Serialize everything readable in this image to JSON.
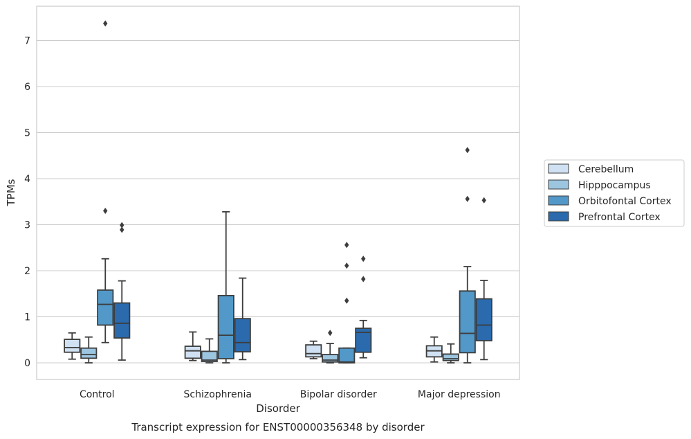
{
  "chart_data": {
    "type": "box",
    "caption": "Transcript expression for ENST00000356348 by disorder",
    "xlabel": "Disorder",
    "ylabel": "TPMs",
    "ylim": [
      -0.35,
      7.75
    ],
    "yticks": [
      0,
      1,
      2,
      3,
      4,
      5,
      6,
      7
    ],
    "grid": true,
    "legend_position": "right",
    "categories": [
      "Control",
      "Schizophrenia",
      "Bipolar disorder",
      "Major depression"
    ],
    "series": [
      {
        "name": "Cerebellum",
        "color": "#cfe1f2",
        "boxes": [
          {
            "whisker_low": 0.08,
            "q1": 0.23,
            "median": 0.33,
            "q3": 0.51,
            "whisker_high": 0.65,
            "outliers": []
          },
          {
            "whisker_low": 0.05,
            "q1": 0.1,
            "median": 0.26,
            "q3": 0.36,
            "whisker_high": 0.67,
            "outliers": []
          },
          {
            "whisker_low": 0.09,
            "q1": 0.13,
            "median": 0.2,
            "q3": 0.39,
            "whisker_high": 0.47,
            "outliers": []
          },
          {
            "whisker_low": 0.02,
            "q1": 0.13,
            "median": 0.26,
            "q3": 0.37,
            "whisker_high": 0.56,
            "outliers": []
          }
        ]
      },
      {
        "name": "Hipppocampus",
        "color": "#9cc5e0",
        "boxes": [
          {
            "whisker_low": 0.0,
            "q1": 0.1,
            "median": 0.18,
            "q3": 0.32,
            "whisker_high": 0.56,
            "outliers": []
          },
          {
            "whisker_low": 0.0,
            "q1": 0.03,
            "median": 0.06,
            "q3": 0.25,
            "whisker_high": 0.52,
            "outliers": []
          },
          {
            "whisker_low": 0.0,
            "q1": 0.02,
            "median": 0.06,
            "q3": 0.18,
            "whisker_high": 0.42,
            "outliers": [
              0.65
            ]
          },
          {
            "whisker_low": 0.0,
            "q1": 0.05,
            "median": 0.09,
            "q3": 0.19,
            "whisker_high": 0.41,
            "outliers": []
          }
        ]
      },
      {
        "name": "Orbitofontal Cortex",
        "color": "#5298c8",
        "boxes": [
          {
            "whisker_low": 0.44,
            "q1": 0.82,
            "median": 1.27,
            "q3": 1.58,
            "whisker_high": 2.26,
            "outliers": [
              3.3,
              7.37
            ]
          },
          {
            "whisker_low": 0.0,
            "q1": 0.09,
            "median": 0.6,
            "q3": 1.46,
            "whisker_high": 3.28,
            "outliers": []
          },
          {
            "whisker_low": 0.0,
            "q1": 0.0,
            "median": 0.02,
            "q3": 0.32,
            "whisker_high": 0.32,
            "outliers": [
              1.35,
              2.11,
              2.56
            ]
          },
          {
            "whisker_low": 0.0,
            "q1": 0.22,
            "median": 0.64,
            "q3": 1.56,
            "whisker_high": 2.09,
            "outliers": [
              3.56,
              4.62
            ]
          }
        ]
      },
      {
        "name": "Prefrontal Cortex",
        "color": "#2a6aad",
        "boxes": [
          {
            "whisker_low": 0.06,
            "q1": 0.54,
            "median": 0.86,
            "q3": 1.3,
            "whisker_high": 1.78,
            "outliers": [
              2.89,
              2.99
            ]
          },
          {
            "whisker_low": 0.07,
            "q1": 0.24,
            "median": 0.44,
            "q3": 0.96,
            "whisker_high": 1.84,
            "outliers": []
          },
          {
            "whisker_low": 0.11,
            "q1": 0.23,
            "median": 0.66,
            "q3": 0.75,
            "whisker_high": 0.92,
            "outliers": [
              1.82,
              2.26
            ]
          },
          {
            "whisker_low": 0.07,
            "q1": 0.48,
            "median": 0.82,
            "q3": 1.39,
            "whisker_high": 1.79,
            "outliers": [
              3.53
            ]
          }
        ]
      }
    ]
  }
}
